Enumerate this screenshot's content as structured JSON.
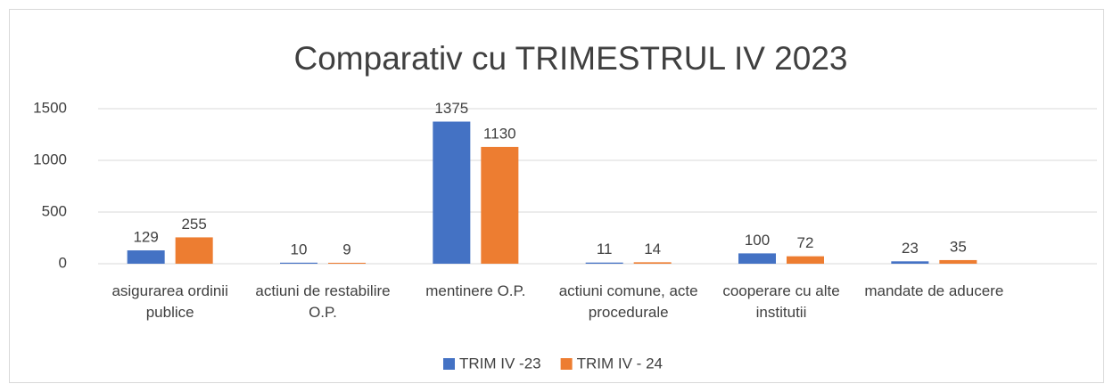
{
  "chart_data": {
    "type": "bar",
    "title": "Comparativ cu TRIMESTRUL IV 2023",
    "categories": [
      "asigurarea ordinii publice",
      "actiuni de restabilire O.P.",
      "mentinere O.P.",
      "actiuni comune, acte procedurale",
      "cooperare cu alte institutii",
      "mandate de aducere"
    ],
    "series": [
      {
        "name": "TRIM IV -23",
        "color": "#4472c4",
        "values": [
          129,
          10,
          1375,
          11,
          100,
          23
        ]
      },
      {
        "name": "TRIM IV - 24",
        "color": "#ed7d31",
        "values": [
          255,
          9,
          1130,
          14,
          72,
          35
        ]
      }
    ],
    "ylim": [
      0,
      1500
    ],
    "yticks": [
      0,
      500,
      1000,
      1500
    ],
    "grid": true,
    "legend": "bottom"
  }
}
